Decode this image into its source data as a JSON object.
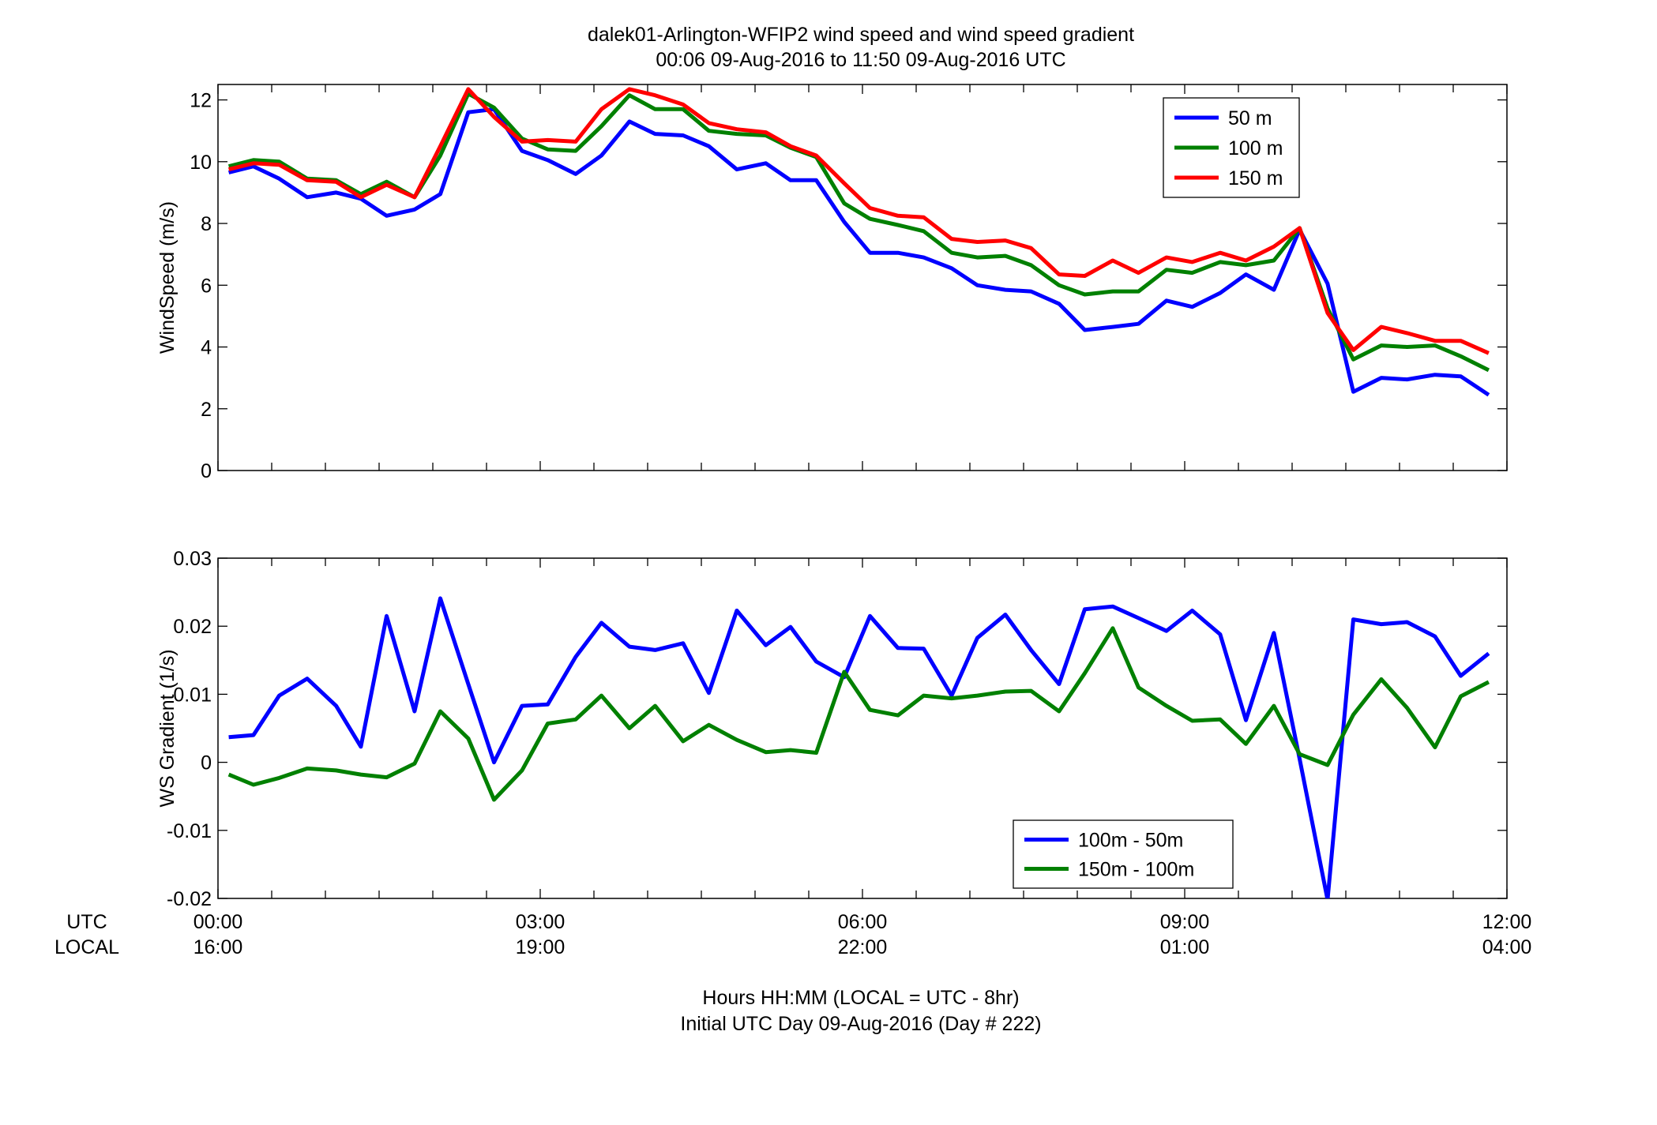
{
  "figure": {
    "title_line1": "dalek01-Arlington-WFIP2  wind speed and wind speed gradient",
    "title_line2": "00:06 09-Aug-2016 to 11:50 09-Aug-2016  UTC",
    "row_label_utc": "UTC",
    "row_label_local": "LOCAL",
    "xlabel_line1": "Hours HH:MM  (LOCAL = UTC - 8hr)",
    "xlabel_line2": "Initial UTC Day 09-Aug-2016 (Day # 222)"
  },
  "chart_data": [
    {
      "type": "line",
      "ylabel": "WindSpeed (m/s)",
      "xlim": [
        0,
        12
      ],
      "ylim": [
        0,
        12.5
      ],
      "yticks": [
        0,
        2,
        4,
        6,
        8,
        10,
        12
      ],
      "xticks": [
        0,
        3,
        6,
        9,
        12
      ],
      "xtick_labels_utc": [
        "00:00",
        "03:00",
        "06:00",
        "09:00",
        "12:00"
      ],
      "xtick_labels_local": [
        "16:00",
        "19:00",
        "22:00",
        "01:00",
        "04:00"
      ],
      "legend_position": "top-right",
      "grid": false,
      "x": [
        0.1,
        0.33,
        0.57,
        0.83,
        1.1,
        1.33,
        1.57,
        1.83,
        2.07,
        2.33,
        2.57,
        2.83,
        3.07,
        3.33,
        3.57,
        3.83,
        4.07,
        4.33,
        4.57,
        4.83,
        5.1,
        5.33,
        5.57,
        5.83,
        6.07,
        6.33,
        6.57,
        6.83,
        7.07,
        7.33,
        7.57,
        7.83,
        8.07,
        8.33,
        8.57,
        8.83,
        9.07,
        9.33,
        9.57,
        9.83,
        10.07,
        10.33,
        10.57,
        10.83,
        11.07,
        11.33,
        11.57,
        11.83
      ],
      "series": [
        {
          "name": "50 m",
          "color": "#0000ff",
          "values": [
            9.65,
            9.85,
            9.45,
            8.85,
            9.0,
            8.8,
            8.25,
            8.45,
            8.95,
            11.6,
            11.7,
            10.35,
            10.05,
            9.6,
            10.2,
            11.3,
            10.9,
            10.85,
            10.5,
            9.75,
            9.95,
            9.4,
            9.4,
            8.05,
            7.05,
            7.05,
            6.9,
            6.55,
            6.0,
            5.85,
            5.8,
            5.4,
            4.55,
            4.65,
            4.75,
            5.5,
            5.3,
            5.75,
            6.35,
            5.85,
            7.8,
            6.05,
            2.55,
            3.0,
            2.95,
            3.1,
            3.05,
            2.45
          ]
        },
        {
          "name": "100 m",
          "color": "#008000",
          "values": [
            9.85,
            10.05,
            10.0,
            9.45,
            9.4,
            8.95,
            9.35,
            8.85,
            10.2,
            12.2,
            11.75,
            10.75,
            10.4,
            10.35,
            11.15,
            12.15,
            11.7,
            11.7,
            11.0,
            10.9,
            10.85,
            10.45,
            10.15,
            8.65,
            8.15,
            7.95,
            7.75,
            7.05,
            6.9,
            6.95,
            6.65,
            6.0,
            5.7,
            5.8,
            5.8,
            6.5,
            6.4,
            6.75,
            6.65,
            6.8,
            7.85,
            5.25,
            3.6,
            4.05,
            4.0,
            4.05,
            3.7,
            3.25
          ]
        },
        {
          "name": "150 m",
          "color": "#ff0000",
          "values": [
            9.75,
            9.95,
            9.9,
            9.4,
            9.35,
            8.85,
            9.25,
            8.85,
            10.5,
            12.35,
            11.45,
            10.65,
            10.7,
            10.65,
            11.7,
            12.35,
            12.15,
            11.85,
            11.25,
            11.05,
            10.95,
            10.5,
            10.2,
            9.3,
            8.5,
            8.25,
            8.2,
            7.5,
            7.4,
            7.45,
            7.2,
            6.35,
            6.3,
            6.8,
            6.4,
            6.9,
            6.75,
            7.05,
            6.8,
            7.25,
            7.85,
            5.1,
            3.9,
            4.65,
            4.45,
            4.2,
            4.2,
            3.8
          ]
        }
      ]
    },
    {
      "type": "line",
      "ylabel": "WS Gradient (1/s)",
      "xlim": [
        0,
        12
      ],
      "ylim": [
        -0.02,
        0.03
      ],
      "yticks": [
        -0.02,
        -0.01,
        0,
        0.01,
        0.02,
        0.03
      ],
      "ytick_labels": [
        "-0.02",
        "-0.01",
        "0",
        "0.01",
        "0.02",
        "0.03"
      ],
      "xticks": [
        0,
        3,
        6,
        9,
        12
      ],
      "legend_position": "bottom-right",
      "grid": false,
      "x": [
        0.1,
        0.33,
        0.57,
        0.83,
        1.1,
        1.33,
        1.57,
        1.83,
        2.07,
        2.33,
        2.57,
        2.83,
        3.07,
        3.33,
        3.57,
        3.83,
        4.07,
        4.33,
        4.57,
        4.83,
        5.1,
        5.33,
        5.57,
        5.83,
        6.07,
        6.33,
        6.57,
        6.83,
        7.07,
        7.33,
        7.57,
        7.83,
        8.07,
        8.33,
        8.57,
        8.83,
        9.07,
        9.33,
        9.57,
        9.83,
        10.07,
        10.33,
        10.57,
        10.83,
        11.07,
        11.33,
        11.57,
        11.83
      ],
      "series": [
        {
          "name": "100m - 50m",
          "color": "#0000ff",
          "values": [
            0.0037,
            0.004,
            0.0098,
            0.0123,
            0.0083,
            0.0023,
            0.0215,
            0.0075,
            0.0241,
            0.0115,
            0.0,
            0.0083,
            0.0085,
            0.0155,
            0.0205,
            0.017,
            0.0165,
            0.0175,
            0.0102,
            0.0223,
            0.0172,
            0.0199,
            0.0148,
            0.0125,
            0.0215,
            0.0168,
            0.0167,
            0.0098,
            0.0183,
            0.0217,
            0.0165,
            0.0115,
            0.0225,
            0.0229,
            0.0212,
            0.0193,
            0.0223,
            0.0188,
            0.0062,
            0.019,
            0.0005,
            -0.0202,
            0.021,
            0.0203,
            0.0206,
            0.0185,
            0.0127,
            0.016
          ]
        },
        {
          "name": "150m - 100m",
          "color": "#008000",
          "values": [
            -0.0018,
            -0.0033,
            -0.0023,
            -0.0009,
            -0.0012,
            -0.0018,
            -0.0022,
            -0.0002,
            0.0075,
            0.0035,
            -0.0055,
            -0.0012,
            0.0057,
            0.0063,
            0.0098,
            0.005,
            0.0083,
            0.0031,
            0.0055,
            0.0033,
            0.0015,
            0.0018,
            0.0014,
            0.0133,
            0.0077,
            0.0069,
            0.0098,
            0.0094,
            0.0098,
            0.0104,
            0.0105,
            0.0075,
            0.0131,
            0.0197,
            0.011,
            0.0083,
            0.0061,
            0.0063,
            0.0027,
            0.0083,
            0.0012,
            -0.0004,
            0.007,
            0.0122,
            0.008,
            0.0022,
            0.0097,
            0.0118
          ]
        }
      ]
    }
  ]
}
